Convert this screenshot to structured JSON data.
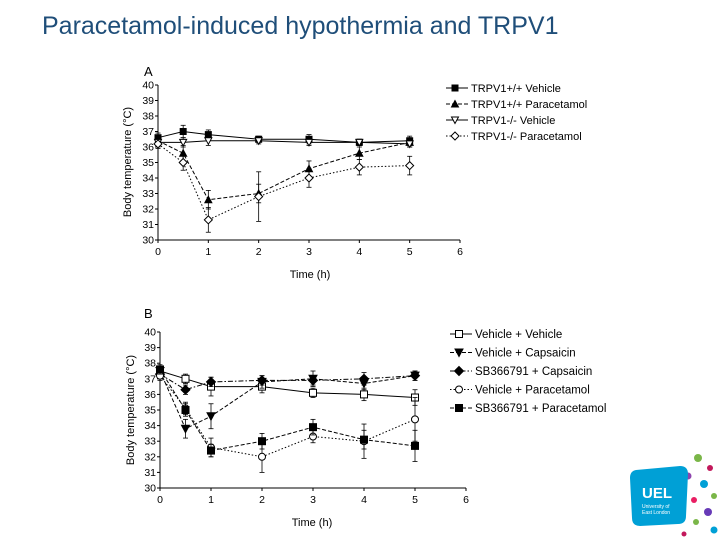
{
  "slide": {
    "title": "Paracetamol-induced hypothermia and TRPV1"
  },
  "logo": {
    "text": "UEL",
    "subtext_1": "University of",
    "subtext_2": "East London"
  },
  "chart_data": [
    {
      "type": "line",
      "panel_label": "A",
      "xlabel": "Time (h)",
      "ylabel": "Body temperature (°C)",
      "xlim": [
        0,
        6
      ],
      "ylim": [
        30,
        40
      ],
      "xticks": [
        0,
        1,
        2,
        3,
        4,
        5,
        6
      ],
      "yticks": [
        30,
        31,
        32,
        33,
        34,
        35,
        36,
        37,
        38,
        39,
        40
      ],
      "grid": false,
      "legend": "top-right",
      "series": [
        {
          "name": "TRPV1+/+ Vehicle",
          "marker": "filled-square",
          "dash": "solid",
          "x": [
            0,
            0.5,
            1,
            2,
            3,
            4,
            5
          ],
          "y": [
            36.6,
            37.0,
            36.8,
            36.5,
            36.5,
            36.3,
            36.4
          ],
          "err": [
            0.3,
            0.4,
            0.3,
            0.2,
            0.3,
            0.2,
            0.3
          ]
        },
        {
          "name": "TRPV1+/+ Paracetamol",
          "marker": "filled-triangle",
          "dash": "dashed",
          "x": [
            0,
            0.5,
            1,
            2,
            3,
            4,
            5
          ],
          "y": [
            36.4,
            35.6,
            32.6,
            33.0,
            34.6,
            35.6,
            36.3
          ],
          "err": [
            0.3,
            0.5,
            0.6,
            0.6,
            0.5,
            0.4,
            0.3
          ]
        },
        {
          "name": "TRPV1-/- Vehicle",
          "marker": "open-triangle-down",
          "dash": "solid",
          "x": [
            0,
            0.5,
            1,
            2,
            3,
            4,
            5
          ],
          "y": [
            36.3,
            36.3,
            36.4,
            36.4,
            36.3,
            36.3,
            36.2
          ],
          "err": [
            0.3,
            0.3,
            0.3,
            0.2,
            0.2,
            0.2,
            0.2
          ]
        },
        {
          "name": "TRPV1-/- Paracetamol",
          "marker": "open-diamond",
          "dash": "dotted",
          "x": [
            0,
            0.5,
            1,
            2,
            3,
            4,
            5
          ],
          "y": [
            36.2,
            35.0,
            31.3,
            32.8,
            34.0,
            34.7,
            34.8
          ],
          "err": [
            0.3,
            0.5,
            0.8,
            1.6,
            0.6,
            0.5,
            0.6
          ]
        }
      ]
    },
    {
      "type": "line",
      "panel_label": "B",
      "xlabel": "Time (h)",
      "ylabel": "Body temperature (°C)",
      "xlim": [
        0,
        6
      ],
      "ylim": [
        30,
        40
      ],
      "xticks": [
        0,
        1,
        2,
        3,
        4,
        5,
        6
      ],
      "yticks": [
        30,
        31,
        32,
        33,
        34,
        35,
        36,
        37,
        38,
        39,
        40
      ],
      "grid": false,
      "legend": "top-right",
      "series": [
        {
          "name": "Vehicle + Vehicle",
          "marker": "open-square",
          "dash": "solid",
          "x": [
            0,
            0.5,
            1,
            2,
            3,
            4,
            5
          ],
          "y": [
            37.5,
            37.0,
            36.5,
            36.5,
            36.1,
            36.0,
            35.8
          ],
          "err": [
            0.3,
            0.3,
            0.6,
            0.4,
            0.3,
            0.4,
            0.5
          ]
        },
        {
          "name": "Vehicle + Capsaicin",
          "marker": "filled-triangle-down",
          "dash": "dashed",
          "x": [
            0,
            0.5,
            1,
            2,
            3,
            4,
            5
          ],
          "y": [
            37.5,
            33.8,
            34.6,
            36.8,
            37.0,
            36.7,
            37.2
          ],
          "err": [
            0.3,
            0.6,
            0.8,
            0.4,
            0.5,
            0.4,
            0.3
          ]
        },
        {
          "name": "SB366791 + Capsaicin",
          "marker": "filled-diamond",
          "dash": "dashdot",
          "x": [
            0,
            0.5,
            1,
            2,
            3,
            4,
            5
          ],
          "y": [
            37.3,
            36.3,
            36.8,
            36.9,
            36.9,
            37.0,
            37.2
          ],
          "err": [
            0.3,
            0.3,
            0.3,
            0.3,
            0.3,
            0.4,
            0.3
          ]
        },
        {
          "name": "Vehicle + Paracetamol",
          "marker": "open-circle",
          "dash": "dotted",
          "x": [
            0,
            0.5,
            1,
            2,
            3,
            4,
            5
          ],
          "y": [
            37.2,
            35.1,
            32.6,
            32.0,
            33.3,
            33.0,
            34.4
          ],
          "err": [
            0.3,
            0.4,
            0.6,
            1.0,
            0.4,
            1.1,
            1.4
          ]
        },
        {
          "name": "SB366791 + Paracetamol",
          "marker": "filled-square",
          "dash": "dashed",
          "x": [
            0,
            0.5,
            1,
            2,
            3,
            4,
            5
          ],
          "y": [
            37.6,
            35.0,
            32.4,
            33.0,
            33.9,
            33.1,
            32.7
          ],
          "err": [
            0.3,
            0.4,
            0.4,
            0.5,
            0.5,
            0.6,
            1.0
          ]
        }
      ]
    }
  ]
}
